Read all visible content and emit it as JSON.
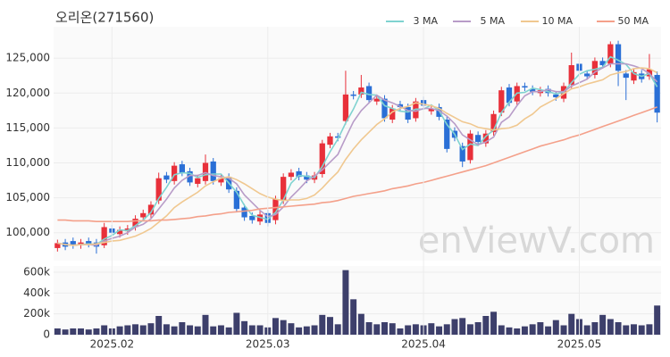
{
  "chart_data": [
    {
      "type": "candlestick",
      "title": "오리온(271560)",
      "watermark": "enViewV.com",
      "up_color": "#e8303a",
      "down_color": "#2a6fd6",
      "grid": true,
      "ylim": [
        96000,
        129500
      ],
      "yticks": [
        {
          "value": 100000,
          "label": "100,000"
        },
        {
          "value": 105000,
          "label": "105,000"
        },
        {
          "value": 110000,
          "label": "110,000"
        },
        {
          "value": 115000,
          "label": "115,000"
        },
        {
          "value": 120000,
          "label": "120,000"
        },
        {
          "value": 125000,
          "label": "125,000"
        }
      ],
      "open": [
        97800,
        98600,
        98800,
        98200,
        98800,
        98600,
        98200,
        100600,
        99800,
        100200,
        100800,
        102200,
        102600,
        104600,
        108200,
        107400,
        109800,
        108800,
        107000,
        107400,
        110200,
        107200,
        108000,
        106000,
        103600,
        102400,
        101600,
        102800,
        101800,
        104600,
        108000,
        108800,
        108200,
        107600,
        108400,
        112600,
        113800,
        116000,
        119800,
        119800,
        121000,
        118800,
        119200,
        116200,
        118400,
        118000,
        116400,
        119000,
        117400,
        118000,
        116200,
        114600,
        112400,
        110400,
        114000,
        112800,
        114400,
        117200,
        120800,
        118800,
        121000,
        120600,
        120000,
        120600,
        119800,
        119200,
        121200,
        124200,
        122800,
        122600,
        124600,
        124200,
        127000,
        122800,
        121800,
        122800,
        122400,
        122600
      ],
      "high": [
        99000,
        99100,
        99300,
        99100,
        99300,
        99100,
        101400,
        101100,
        100900,
        101100,
        102500,
        103300,
        104500,
        108600,
        108700,
        110100,
        110300,
        109300,
        108300,
        111200,
        110700,
        108300,
        108500,
        106500,
        104100,
        102900,
        103100,
        103300,
        105300,
        108500,
        109100,
        109300,
        108700,
        108700,
        113300,
        114300,
        114300,
        123200,
        120300,
        122600,
        121500,
        119700,
        119700,
        118300,
        118900,
        118500,
        119300,
        119500,
        118300,
        118500,
        116700,
        115100,
        112900,
        114700,
        114500,
        114700,
        117500,
        120900,
        121300,
        121500,
        121500,
        121100,
        120900,
        121100,
        120300,
        121500,
        125800,
        124700,
        123300,
        125100,
        125100,
        127400,
        127500,
        123300,
        123500,
        123300,
        125600,
        123100
      ],
      "low": [
        97300,
        97500,
        97700,
        97700,
        97900,
        97000,
        97800,
        99500,
        99300,
        99700,
        100300,
        101700,
        102100,
        104100,
        107100,
        106900,
        108100,
        106700,
        106500,
        106900,
        106900,
        106700,
        105700,
        102900,
        101700,
        101300,
        101100,
        100900,
        101200,
        104100,
        107500,
        107500,
        107100,
        107100,
        107900,
        112100,
        113100,
        115500,
        119100,
        119300,
        118500,
        118300,
        115900,
        115700,
        117500,
        115700,
        115900,
        117700,
        116900,
        116100,
        111500,
        113100,
        109400,
        109900,
        112500,
        112300,
        113900,
        116700,
        118100,
        118300,
        120300,
        119700,
        119500,
        119500,
        118900,
        118700,
        120700,
        122700,
        121900,
        122100,
        123500,
        123700,
        121000,
        119000,
        121300,
        121500,
        121900,
        115800
      ],
      "close": [
        98500,
        98000,
        98200,
        98600,
        98400,
        98000,
        100800,
        100000,
        100400,
        100600,
        102000,
        102800,
        104000,
        107800,
        107600,
        109600,
        108600,
        107200,
        107800,
        110000,
        107400,
        107800,
        106200,
        103400,
        102200,
        101800,
        102600,
        101400,
        104800,
        108000,
        108600,
        108000,
        107600,
        108200,
        112800,
        113800,
        113600,
        119800,
        119600,
        120800,
        119000,
        119200,
        116400,
        117800,
        118000,
        116200,
        118800,
        118200,
        117800,
        116600,
        112000,
        113600,
        110200,
        114200,
        113000,
        114200,
        117000,
        120400,
        118600,
        121000,
        120800,
        120200,
        120400,
        120000,
        119400,
        121000,
        124000,
        123200,
        122400,
        124600,
        124000,
        127000,
        123200,
        122200,
        123000,
        122000,
        123400,
        117200
      ],
      "series": [
        {
          "name": "3 MA",
          "color": "#7fd3d0",
          "values": [
            98500,
            98300,
            98200,
            98300,
            98400,
            98300,
            99100,
            99600,
            100400,
            100300,
            101000,
            101800,
            102900,
            104900,
            106500,
            108300,
            108600,
            108500,
            107900,
            108300,
            108400,
            108400,
            107100,
            105800,
            103900,
            102500,
            102200,
            101900,
            102900,
            104700,
            107100,
            108200,
            108100,
            107900,
            109500,
            111600,
            113400,
            115700,
            117700,
            120100,
            119800,
            119700,
            118200,
            117800,
            117400,
            117300,
            117700,
            117700,
            118300,
            117500,
            115500,
            114100,
            111900,
            112700,
            112500,
            113800,
            114700,
            117200,
            118700,
            120000,
            120100,
            120700,
            120500,
            120200,
            119900,
            120100,
            121500,
            122700,
            123200,
            123400,
            123700,
            125200,
            124700,
            124100,
            122800,
            122400,
            122800,
            120900
          ]
        },
        {
          "name": "5 MA",
          "color": "#b89cc8",
          "values": [
            98500,
            98300,
            98200,
            98300,
            98300,
            98200,
            98800,
            99200,
            99500,
            100000,
            100800,
            101200,
            102000,
            103400,
            104800,
            106400,
            107500,
            108200,
            108200,
            108600,
            108200,
            108000,
            107800,
            107000,
            105400,
            104300,
            103200,
            102300,
            102600,
            103700,
            105100,
            106200,
            107400,
            108100,
            109000,
            110100,
            111200,
            113600,
            115900,
            117500,
            118600,
            119700,
            119000,
            118600,
            118100,
            117500,
            117400,
            117800,
            117800,
            117500,
            116700,
            115600,
            114000,
            113300,
            112600,
            113000,
            113700,
            115800,
            116600,
            118200,
            119600,
            120200,
            120200,
            120500,
            120200,
            120200,
            121000,
            121500,
            122000,
            123000,
            123600,
            124200,
            124200,
            124200,
            123900,
            123500,
            122800,
            121600
          ]
        },
        {
          "name": "10 MA",
          "color": "#f0c890",
          "values": [
            98500,
            98300,
            98200,
            98300,
            98300,
            98400,
            98600,
            98800,
            98900,
            99200,
            99500,
            100000,
            100600,
            101500,
            102400,
            103600,
            104400,
            105100,
            105800,
            106700,
            107300,
            107800,
            108000,
            107600,
            107000,
            106300,
            105600,
            105100,
            104800,
            104600,
            104700,
            104700,
            104900,
            105400,
            106400,
            107600,
            108700,
            110500,
            112000,
            113300,
            114400,
            115500,
            116300,
            117300,
            117800,
            118100,
            118600,
            118400,
            118200,
            117800,
            117100,
            116500,
            115900,
            115600,
            115100,
            114900,
            114700,
            114900,
            115000,
            115400,
            116300,
            117000,
            118000,
            118600,
            119200,
            119900,
            120600,
            120900,
            121300,
            121600,
            121900,
            122600,
            122900,
            123100,
            123500,
            123600,
            123500,
            122900
          ]
        },
        {
          "name": "50 MA",
          "color": "#f4a08a",
          "values": [
            101800,
            101800,
            101700,
            101700,
            101700,
            101600,
            101600,
            101600,
            101600,
            101600,
            101700,
            101700,
            101700,
            101800,
            101800,
            101900,
            102000,
            102100,
            102300,
            102400,
            102600,
            102700,
            102900,
            103000,
            103100,
            103200,
            103400,
            103500,
            103600,
            103700,
            103800,
            103900,
            104000,
            104100,
            104300,
            104400,
            104600,
            104900,
            105200,
            105400,
            105600,
            105800,
            106000,
            106300,
            106500,
            106700,
            107000,
            107200,
            107500,
            107800,
            108100,
            108400,
            108700,
            109000,
            109300,
            109600,
            110000,
            110400,
            110800,
            111200,
            111600,
            112000,
            112400,
            112700,
            113000,
            113300,
            113700,
            114000,
            114400,
            114800,
            115200,
            115600,
            116000,
            116400,
            116800,
            117200,
            117600,
            118000
          ]
        }
      ]
    },
    {
      "type": "bar",
      "color": "#3d3f6b",
      "categories": [
        null,
        null,
        null,
        null,
        null,
        null,
        null,
        "2025.02",
        null,
        null,
        null,
        null,
        null,
        null,
        null,
        null,
        null,
        null,
        null,
        null,
        null,
        null,
        null,
        null,
        null,
        null,
        null,
        "2025.03",
        null,
        null,
        null,
        null,
        null,
        null,
        null,
        null,
        null,
        null,
        null,
        null,
        null,
        null,
        null,
        null,
        null,
        null,
        null,
        "2025.04",
        null,
        null,
        null,
        null,
        null,
        null,
        null,
        null,
        null,
        null,
        null,
        null,
        null,
        null,
        null,
        null,
        null,
        null,
        null,
        "2025.05",
        null,
        null,
        null,
        null,
        null,
        null,
        null,
        null,
        null,
        null
      ],
      "values": [
        60000,
        50000,
        60000,
        60000,
        50000,
        60000,
        90000,
        60000,
        80000,
        90000,
        100000,
        90000,
        110000,
        180000,
        100000,
        80000,
        120000,
        90000,
        80000,
        190000,
        80000,
        90000,
        70000,
        210000,
        130000,
        90000,
        90000,
        70000,
        160000,
        140000,
        110000,
        70000,
        80000,
        90000,
        190000,
        170000,
        100000,
        620000,
        340000,
        200000,
        120000,
        100000,
        120000,
        110000,
        60000,
        90000,
        100000,
        90000,
        110000,
        80000,
        100000,
        150000,
        160000,
        100000,
        120000,
        180000,
        220000,
        90000,
        70000,
        60000,
        80000,
        100000,
        120000,
        80000,
        140000,
        90000,
        200000,
        150000,
        90000,
        120000,
        190000,
        150000,
        120000,
        90000,
        100000,
        90000,
        100000,
        280000
      ],
      "ylim": [
        0,
        660000
      ],
      "yticks": [
        0,
        {
          "value": 200000,
          "label": "200k"
        },
        {
          "value": 400000,
          "label": "400k"
        },
        {
          "value": 600000,
          "label": "600k"
        }
      ]
    }
  ]
}
